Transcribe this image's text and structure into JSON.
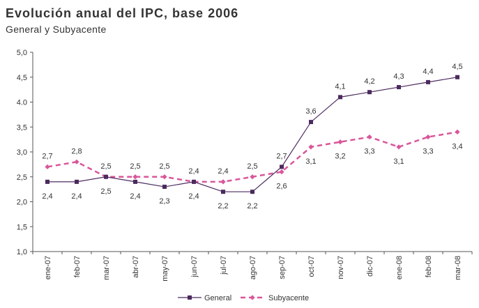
{
  "chart_data": {
    "type": "line",
    "title": "Evolución anual del IPC, base 2006",
    "subtitle": "General y Subyacente",
    "xlabel": "",
    "ylabel": "",
    "categories": [
      "ene-07",
      "feb-07",
      "mar-07",
      "abr-07",
      "may-07",
      "jun-07",
      "jul-07",
      "ago-07",
      "sep-07",
      "oct-07",
      "nov-07",
      "dic-07",
      "ene-08",
      "feb-08",
      "mar-08"
    ],
    "ylim": [
      1.0,
      5.0
    ],
    "yticks": [
      "1,0",
      "1,5",
      "2,0",
      "2,5",
      "3,0",
      "3,5",
      "4.0",
      "4,5",
      "5,0"
    ],
    "series": [
      {
        "name": "General",
        "color": "#4b2a5e",
        "style": "solid",
        "marker": "square",
        "values": [
          2.4,
          2.4,
          2.5,
          2.4,
          2.3,
          2.4,
          2.2,
          2.2,
          2.7,
          3.6,
          4.1,
          4.2,
          4.3,
          4.4,
          4.5
        ],
        "labels": [
          "2,4",
          "2,4",
          "2,5",
          "2,4",
          "2,3",
          "2,4",
          "2,2",
          "2,2",
          "2,7",
          "3,6",
          "4,1",
          "4,2",
          "4,3",
          "4,4",
          "4,5"
        ]
      },
      {
        "name": "Subyacente",
        "color": "#d9569a",
        "style": "dashed",
        "marker": "diamond",
        "values": [
          2.7,
          2.8,
          2.5,
          2.5,
          2.5,
          2.4,
          2.4,
          2.5,
          2.6,
          3.1,
          3.2,
          3.3,
          3.1,
          3.3,
          3.4
        ],
        "labels": [
          "2,7",
          "2,8",
          "2,5",
          "2,5",
          "2,5",
          "2,4",
          "2,4",
          "2,5",
          "2,6",
          "3,1",
          "3,2",
          "3,3",
          "3,1",
          "3,3",
          "3,4"
        ]
      }
    ],
    "grid": false,
    "legend_position": "bottom"
  }
}
